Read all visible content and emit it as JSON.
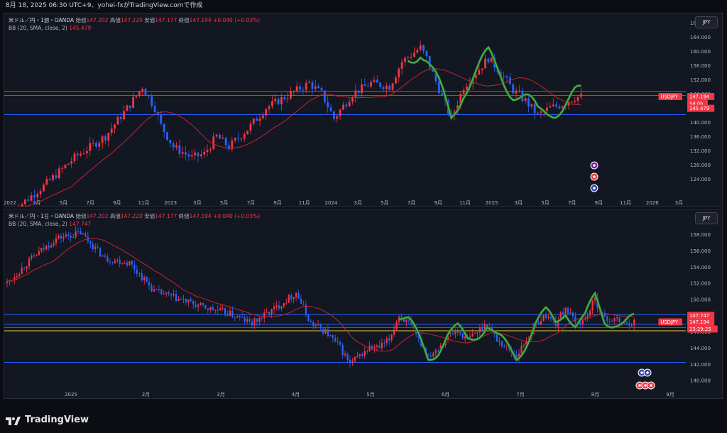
{
  "header": {
    "timestamp": "8月 18, 2025 06:30 UTC+9、yohei-fxがTradingView.comで作成"
  },
  "colors": {
    "up": "#f23645",
    "down": "#2962ff",
    "bb": "#c2252f",
    "hline": "#2962ff",
    "yline": "#e0d044",
    "wave": "#4caf50",
    "bg": "#131722"
  },
  "chart1": {
    "symbol_line": "米ドル／円・1週・OANDA",
    "o_label": "始値",
    "o": "147.202",
    "h_label": "高値",
    "h": "147.220",
    "l_label": "安値",
    "l": "147.177",
    "c_label": "終値",
    "c": "147.194",
    "chg": "+0.040 (+0.03%)",
    "bb_label": "BB (20, SMA, close, 2)",
    "bb_value": "145.479",
    "currency": "JPY",
    "price_ticks": [
      "168.000",
      "164.000",
      "160.000",
      "156.000",
      "152.000",
      "148.000",
      "144.000",
      "140.000",
      "136.000",
      "132.000",
      "128.000",
      "124.000"
    ],
    "time_ticks": [
      "2022",
      "3月",
      "5月",
      "7月",
      "9月",
      "11月",
      "2023",
      "3月",
      "5月",
      "7月",
      "9月",
      "11月",
      "2024",
      "3月",
      "5月",
      "7月",
      "9月",
      "11月",
      "2025",
      "3月",
      "5月",
      "7月",
      "9月",
      "11月",
      "2026",
      "3月"
    ],
    "tag_symbol": "USDJPY",
    "tag_price": "147.194",
    "tag_countdown": "5d 0h",
    "tag_bb": "145.479"
  },
  "chart2": {
    "symbol_line": "米ドル／円・1日・OANDA",
    "o_label": "始値",
    "o": "147.202",
    "h_label": "高値",
    "h": "147.220",
    "l_label": "安値",
    "l": "147.177",
    "c_label": "終値",
    "c": "147.194",
    "chg": "+0.040 (+0.03%)",
    "bb_label": "BB (20, SMA, close, 2)",
    "bb_value": "147.747",
    "currency": "JPY",
    "price_ticks": [
      "158.000",
      "156.000",
      "154.000",
      "152.000",
      "150.000",
      "148.000",
      "146.000",
      "144.000",
      "142.000",
      "140.000"
    ],
    "time_ticks": [
      "2025",
      "2月",
      "3月",
      "4月",
      "5月",
      "6月",
      "7月",
      "8月",
      "9月"
    ],
    "tag_bb": "147.747",
    "tag_symbol": "USDJPY",
    "tag_price": "147.194",
    "tag_countdown": "23:29:25"
  },
  "footer": {
    "brand": "TradingView"
  },
  "chart_data": [
    {
      "type": "candlestick",
      "title": "米ドル／円・1週・OANDA",
      "ylim": [
        121,
        169
      ],
      "x_labels": [
        "2022",
        "3月",
        "5月",
        "7月",
        "9月",
        "11月",
        "2023",
        "3月",
        "5月",
        "7月",
        "9月",
        "11月",
        "2024",
        "3月",
        "5月",
        "7月",
        "9月",
        "11月",
        "2025",
        "3月",
        "5月",
        "7月",
        "9月",
        "11月",
        "2026",
        "3月"
      ],
      "keypoints_close": [
        [
          0,
          115
        ],
        [
          10,
          122
        ],
        [
          20,
          130
        ],
        [
          30,
          136
        ],
        [
          38,
          145
        ],
        [
          42,
          150
        ],
        [
          46,
          144
        ],
        [
          48,
          139
        ],
        [
          52,
          133
        ],
        [
          58,
          130
        ],
        [
          62,
          131
        ],
        [
          66,
          136
        ],
        [
          70,
          133
        ],
        [
          76,
          138
        ],
        [
          82,
          144
        ],
        [
          90,
          148
        ],
        [
          96,
          151
        ],
        [
          100,
          148
        ],
        [
          104,
          141
        ],
        [
          110,
          148
        ],
        [
          116,
          151
        ],
        [
          122,
          150
        ],
        [
          126,
          157
        ],
        [
          132,
          161
        ],
        [
          134,
          158
        ],
        [
          140,
          145
        ],
        [
          142,
          141
        ],
        [
          146,
          150
        ],
        [
          150,
          154
        ],
        [
          154,
          158
        ],
        [
          158,
          154
        ],
        [
          162,
          149
        ],
        [
          166,
          146
        ],
        [
          170,
          142
        ],
        [
          174,
          144
        ],
        [
          178,
          145
        ],
        [
          182,
          147
        ],
        [
          184,
          147.2
        ]
      ],
      "bb_basis_last": 145.479,
      "hlines": [
        148.7,
        147.5,
        142.1
      ]
    },
    {
      "type": "candlestick",
      "title": "米ドル／円・1日・OANDA",
      "ylim": [
        139,
        159.5
      ],
      "x_labels": [
        "2025",
        "2月",
        "3月",
        "4月",
        "5月",
        "6月",
        "7月",
        "8月",
        "9月"
      ],
      "keypoints_close": [
        [
          0,
          152
        ],
        [
          10,
          155
        ],
        [
          20,
          157.5
        ],
        [
          30,
          158.2
        ],
        [
          40,
          155
        ],
        [
          50,
          154.5
        ],
        [
          60,
          151
        ],
        [
          70,
          150
        ],
        [
          80,
          149
        ],
        [
          90,
          148.3
        ],
        [
          100,
          147
        ],
        [
          110,
          149
        ],
        [
          118,
          150.8
        ],
        [
          124,
          147
        ],
        [
          130,
          146
        ],
        [
          136,
          144
        ],
        [
          140,
          142
        ],
        [
          144,
          143
        ],
        [
          148,
          144
        ],
        [
          152,
          144
        ],
        [
          156,
          145
        ],
        [
          160,
          148
        ],
        [
          164,
          147
        ],
        [
          168,
          145
        ],
        [
          172,
          143
        ],
        [
          176,
          144
        ],
        [
          180,
          145.5
        ],
        [
          184,
          146
        ],
        [
          188,
          145
        ],
        [
          192,
          146
        ],
        [
          196,
          147
        ],
        [
          200,
          145
        ],
        [
          204,
          144
        ],
        [
          208,
          143
        ],
        [
          212,
          145
        ],
        [
          216,
          147
        ],
        [
          220,
          148
        ],
        [
          224,
          147
        ],
        [
          228,
          149
        ],
        [
          232,
          147
        ],
        [
          236,
          147.5
        ],
        [
          240,
          150
        ],
        [
          244,
          147.5
        ],
        [
          248,
          147.5
        ],
        [
          252,
          147
        ],
        [
          256,
          147.2
        ]
      ],
      "bb_basis_last": 147.747,
      "hlines": [
        148.1,
        146.9,
        146.5,
        146.1,
        142.2
      ]
    }
  ]
}
